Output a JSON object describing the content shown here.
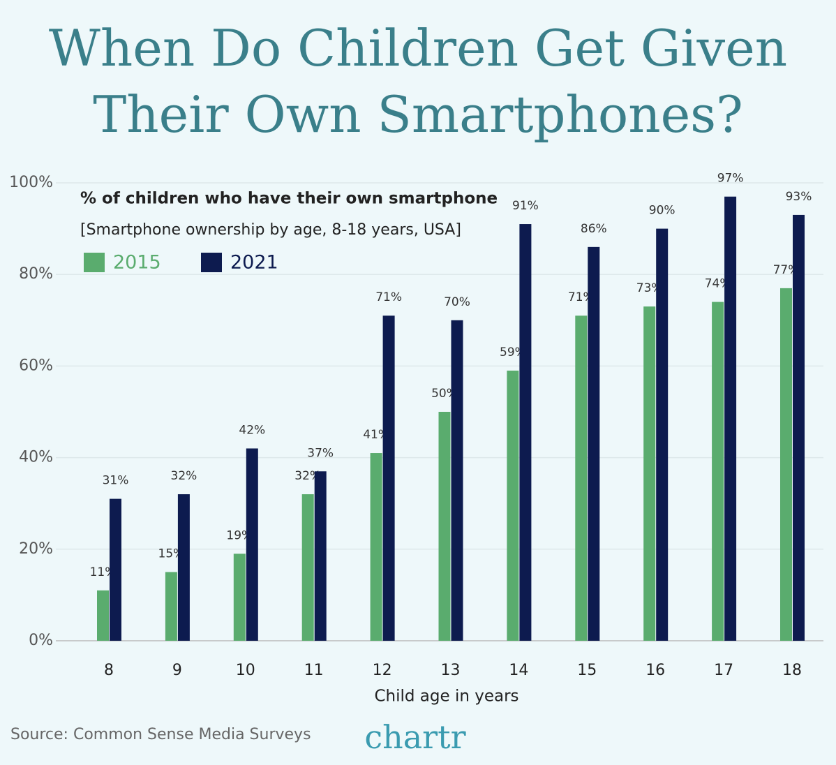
{
  "chart_data": {
    "type": "bar",
    "title": "When Do Children Get Given Their Own Smartphones?",
    "subtitle": "% of children who have their own smartphone",
    "note": "[Smartphone ownership by age, 8-18 years, USA]",
    "x_label": "Child age in years",
    "source": "Source: Common Sense Media Surveys",
    "logo": "chartr",
    "categories": [
      "8",
      "9",
      "10",
      "11",
      "12",
      "13",
      "14",
      "15",
      "16",
      "17",
      "18"
    ],
    "series": [
      {
        "name": "2015",
        "color": "#5aac6e",
        "values": [
          11,
          15,
          19,
          32,
          41,
          50,
          59,
          71,
          73,
          74,
          77
        ],
        "value_labels": [
          "11%",
          "15%",
          "19%",
          "32%",
          "41%",
          "50%",
          "59%",
          "71%",
          "73%",
          "74%",
          "77%"
        ]
      },
      {
        "name": "2021",
        "color": "#0d1b4f",
        "values": [
          31,
          32,
          42,
          37,
          71,
          70,
          91,
          86,
          90,
          97,
          93
        ],
        "value_labels": [
          "31%",
          "32%",
          "42%",
          "37%",
          "71%",
          "70%",
          "91%",
          "86%",
          "90%",
          "97%",
          "93%"
        ]
      }
    ],
    "ylim": [
      0,
      100
    ],
    "yticks": [
      {
        "value": 0,
        "label": "0%"
      },
      {
        "value": 20,
        "label": "20%"
      },
      {
        "value": 40,
        "label": "40%"
      },
      {
        "value": 60,
        "label": "60%"
      },
      {
        "value": 80,
        "label": "80%"
      },
      {
        "value": 100,
        "label": "100%"
      }
    ],
    "grid": true
  }
}
